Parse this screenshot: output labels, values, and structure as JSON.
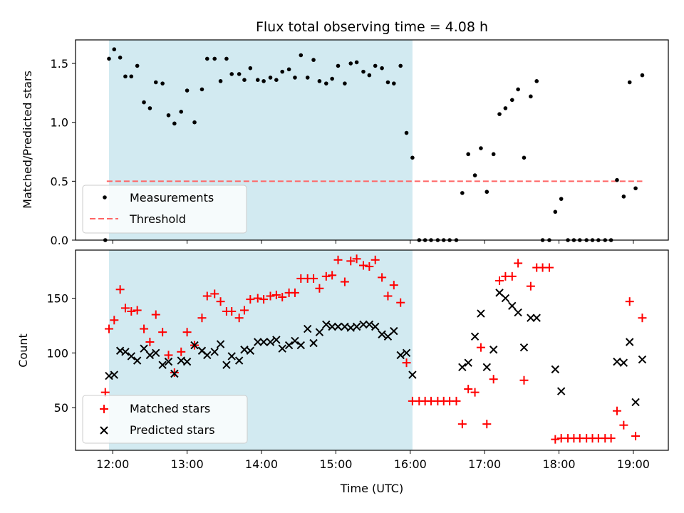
{
  "figure": {
    "title": "Flux total observing time = 4.08 h",
    "xlabel": "Time (UTC)",
    "xticks": [
      {
        "t": 12,
        "label": "12:00"
      },
      {
        "t": 13,
        "label": "13:00"
      },
      {
        "t": 14,
        "label": "14:00"
      },
      {
        "t": 15,
        "label": "15:00"
      },
      {
        "t": 16,
        "label": "16:00"
      },
      {
        "t": 17,
        "label": "17:00"
      },
      {
        "t": 18,
        "label": "18:00"
      },
      {
        "t": 19,
        "label": "19:00"
      }
    ],
    "xlim": [
      11.5,
      19.47
    ],
    "span": {
      "start": 11.95,
      "end": 16.03,
      "color": "#add8e6"
    }
  },
  "chart_data": [
    {
      "type": "scatter",
      "ylabel": "Matched/Predicted stars",
      "ylim": [
        0,
        1.7
      ],
      "yticks": [
        0.0,
        0.5,
        1.0,
        1.5
      ],
      "ytick_labels": [
        "0.0",
        "0.5",
        "1.0",
        "1.5"
      ],
      "legend_position": "lower-left",
      "threshold": {
        "name": "Threshold",
        "y": 0.5,
        "x_range": [
          11.92,
          19.12
        ],
        "color": "#ff6464"
      },
      "series": [
        {
          "name": "Measurements",
          "marker": "dot",
          "color": "#000000",
          "points": [
            [
              11.9,
              0.0
            ],
            [
              11.95,
              1.54
            ],
            [
              12.02,
              1.62
            ],
            [
              12.1,
              1.55
            ],
            [
              12.17,
              1.39
            ],
            [
              12.25,
              1.39
            ],
            [
              12.33,
              1.48
            ],
            [
              12.42,
              1.17
            ],
            [
              12.5,
              1.12
            ],
            [
              12.58,
              1.34
            ],
            [
              12.67,
              1.33
            ],
            [
              12.75,
              1.06
            ],
            [
              12.83,
              0.99
            ],
            [
              12.92,
              1.09
            ],
            [
              13.0,
              1.27
            ],
            [
              13.1,
              1.0
            ],
            [
              13.2,
              1.28
            ],
            [
              13.27,
              1.54
            ],
            [
              13.37,
              1.54
            ],
            [
              13.45,
              1.35
            ],
            [
              13.53,
              1.54
            ],
            [
              13.6,
              1.41
            ],
            [
              13.7,
              1.41
            ],
            [
              13.77,
              1.36
            ],
            [
              13.85,
              1.46
            ],
            [
              13.95,
              1.36
            ],
            [
              14.03,
              1.35
            ],
            [
              14.12,
              1.38
            ],
            [
              14.2,
              1.36
            ],
            [
              14.28,
              1.43
            ],
            [
              14.37,
              1.45
            ],
            [
              14.45,
              1.38
            ],
            [
              14.53,
              1.57
            ],
            [
              14.62,
              1.38
            ],
            [
              14.7,
              1.53
            ],
            [
              14.78,
              1.35
            ],
            [
              14.87,
              1.33
            ],
            [
              14.95,
              1.37
            ],
            [
              15.03,
              1.48
            ],
            [
              15.12,
              1.33
            ],
            [
              15.2,
              1.5
            ],
            [
              15.28,
              1.51
            ],
            [
              15.37,
              1.43
            ],
            [
              15.45,
              1.4
            ],
            [
              15.53,
              1.48
            ],
            [
              15.62,
              1.46
            ],
            [
              15.7,
              1.34
            ],
            [
              15.78,
              1.33
            ],
            [
              15.87,
              1.48
            ],
            [
              15.95,
              0.91
            ],
            [
              16.03,
              0.7
            ],
            [
              16.12,
              0.0
            ],
            [
              16.2,
              0.0
            ],
            [
              16.28,
              0.0
            ],
            [
              16.37,
              0.0
            ],
            [
              16.45,
              0.0
            ],
            [
              16.53,
              0.0
            ],
            [
              16.62,
              0.0
            ],
            [
              16.7,
              0.4
            ],
            [
              16.78,
              0.73
            ],
            [
              16.87,
              0.55
            ],
            [
              16.95,
              0.78
            ],
            [
              17.03,
              0.41
            ],
            [
              17.12,
              0.73
            ],
            [
              17.2,
              1.07
            ],
            [
              17.28,
              1.12
            ],
            [
              17.37,
              1.19
            ],
            [
              17.45,
              1.28
            ],
            [
              17.53,
              0.7
            ],
            [
              17.62,
              1.22
            ],
            [
              17.7,
              1.35
            ],
            [
              17.78,
              0.0
            ],
            [
              17.87,
              0.0
            ],
            [
              17.95,
              0.24
            ],
            [
              18.03,
              0.35
            ],
            [
              18.12,
              0.0
            ],
            [
              18.2,
              0.0
            ],
            [
              18.28,
              0.0
            ],
            [
              18.37,
              0.0
            ],
            [
              18.45,
              0.0
            ],
            [
              18.53,
              0.0
            ],
            [
              18.62,
              0.0
            ],
            [
              18.7,
              0.0
            ],
            [
              18.78,
              0.51
            ],
            [
              18.87,
              0.37
            ],
            [
              18.95,
              1.34
            ],
            [
              19.03,
              0.44
            ],
            [
              19.12,
              1.4
            ]
          ]
        }
      ]
    },
    {
      "type": "scatter",
      "ylabel": "Count",
      "ylim": [
        11,
        194
      ],
      "yticks": [
        50,
        100,
        150
      ],
      "ytick_labels": [
        "50",
        "100",
        "150"
      ],
      "legend_position": "lower-left",
      "series": [
        {
          "name": "Matched stars",
          "marker": "plus",
          "color": "#ff0000",
          "points": [
            [
              11.9,
              64
            ],
            [
              11.95,
              122
            ],
            [
              12.02,
              130
            ],
            [
              12.1,
              158
            ],
            [
              12.17,
              141
            ],
            [
              12.25,
              138
            ],
            [
              12.33,
              139
            ],
            [
              12.42,
              122
            ],
            [
              12.5,
              110
            ],
            [
              12.58,
              135
            ],
            [
              12.67,
              119
            ],
            [
              12.75,
              98
            ],
            [
              12.83,
              82
            ],
            [
              12.92,
              101
            ],
            [
              13.0,
              119
            ],
            [
              13.1,
              107
            ],
            [
              13.2,
              132
            ],
            [
              13.27,
              152
            ],
            [
              13.37,
              154
            ],
            [
              13.45,
              147
            ],
            [
              13.53,
              138
            ],
            [
              13.6,
              138
            ],
            [
              13.7,
              132
            ],
            [
              13.77,
              139
            ],
            [
              13.85,
              149
            ],
            [
              13.95,
              150
            ],
            [
              14.03,
              149
            ],
            [
              14.12,
              152
            ],
            [
              14.2,
              153
            ],
            [
              14.28,
              151
            ],
            [
              14.37,
              155
            ],
            [
              14.45,
              155
            ],
            [
              14.53,
              168
            ],
            [
              14.62,
              168
            ],
            [
              14.7,
              168
            ],
            [
              14.78,
              159
            ],
            [
              14.87,
              170
            ],
            [
              14.95,
              171
            ],
            [
              15.03,
              185
            ],
            [
              15.12,
              165
            ],
            [
              15.2,
              184
            ],
            [
              15.28,
              186
            ],
            [
              15.37,
              180
            ],
            [
              15.45,
              179
            ],
            [
              15.53,
              185
            ],
            [
              15.62,
              169
            ],
            [
              15.7,
              152
            ],
            [
              15.78,
              162
            ],
            [
              15.87,
              146
            ],
            [
              15.95,
              91
            ],
            [
              16.03,
              56
            ],
            [
              16.12,
              56
            ],
            [
              16.2,
              56
            ],
            [
              16.28,
              56
            ],
            [
              16.37,
              56
            ],
            [
              16.45,
              56
            ],
            [
              16.53,
              56
            ],
            [
              16.62,
              56
            ],
            [
              16.7,
              35
            ],
            [
              16.78,
              67
            ],
            [
              16.87,
              64
            ],
            [
              16.95,
              105
            ],
            [
              17.03,
              35
            ],
            [
              17.12,
              76
            ],
            [
              17.2,
              166
            ],
            [
              17.28,
              170
            ],
            [
              17.37,
              170
            ],
            [
              17.45,
              182
            ],
            [
              17.53,
              75
            ],
            [
              17.62,
              161
            ],
            [
              17.7,
              178
            ],
            [
              17.78,
              178
            ],
            [
              17.87,
              178
            ],
            [
              17.95,
              21
            ],
            [
              18.03,
              22
            ],
            [
              18.12,
              22
            ],
            [
              18.2,
              22
            ],
            [
              18.28,
              22
            ],
            [
              18.37,
              22
            ],
            [
              18.45,
              22
            ],
            [
              18.53,
              22
            ],
            [
              18.62,
              22
            ],
            [
              18.7,
              22
            ],
            [
              18.78,
              47
            ],
            [
              18.87,
              34
            ],
            [
              18.95,
              147
            ],
            [
              19.03,
              24
            ],
            [
              19.12,
              132
            ]
          ]
        },
        {
          "name": "Predicted stars",
          "marker": "cross",
          "color": "#000000",
          "points": [
            [
              11.95,
              79
            ],
            [
              12.02,
              80
            ],
            [
              12.1,
              102
            ],
            [
              12.17,
              101
            ],
            [
              12.25,
              97
            ],
            [
              12.33,
              93
            ],
            [
              12.42,
              104
            ],
            [
              12.5,
              98
            ],
            [
              12.58,
              100
            ],
            [
              12.67,
              89
            ],
            [
              12.75,
              92
            ],
            [
              12.83,
              81
            ],
            [
              12.92,
              93
            ],
            [
              13.0,
              92
            ],
            [
              13.1,
              107
            ],
            [
              13.2,
              102
            ],
            [
              13.27,
              98
            ],
            [
              13.37,
              101
            ],
            [
              13.45,
              108
            ],
            [
              13.53,
              89
            ],
            [
              13.6,
              97
            ],
            [
              13.7,
              93
            ],
            [
              13.77,
              103
            ],
            [
              13.85,
              102
            ],
            [
              13.95,
              110
            ],
            [
              14.03,
              110
            ],
            [
              14.12,
              110
            ],
            [
              14.2,
              112
            ],
            [
              14.28,
              104
            ],
            [
              14.37,
              107
            ],
            [
              14.45,
              111
            ],
            [
              14.53,
              107
            ],
            [
              14.62,
              122
            ],
            [
              14.7,
              109
            ],
            [
              14.78,
              119
            ],
            [
              14.87,
              126
            ],
            [
              14.95,
              124
            ],
            [
              15.03,
              124
            ],
            [
              15.12,
              124
            ],
            [
              15.2,
              123
            ],
            [
              15.28,
              124
            ],
            [
              15.37,
              126
            ],
            [
              15.45,
              126
            ],
            [
              15.53,
              124
            ],
            [
              15.62,
              117
            ],
            [
              15.7,
              115
            ],
            [
              15.78,
              120
            ],
            [
              15.87,
              98
            ],
            [
              15.95,
              100
            ],
            [
              16.03,
              80
            ],
            [
              16.7,
              87
            ],
            [
              16.78,
              91
            ],
            [
              16.87,
              115
            ],
            [
              16.95,
              136
            ],
            [
              17.03,
              87
            ],
            [
              17.12,
              103
            ],
            [
              17.2,
              155
            ],
            [
              17.28,
              150
            ],
            [
              17.37,
              143
            ],
            [
              17.45,
              137
            ],
            [
              17.53,
              105
            ],
            [
              17.62,
              132
            ],
            [
              17.7,
              132
            ],
            [
              17.95,
              85
            ],
            [
              18.03,
              65
            ],
            [
              18.78,
              92
            ],
            [
              18.87,
              91
            ],
            [
              18.95,
              110
            ],
            [
              19.03,
              55
            ],
            [
              19.12,
              94
            ]
          ]
        }
      ]
    }
  ]
}
